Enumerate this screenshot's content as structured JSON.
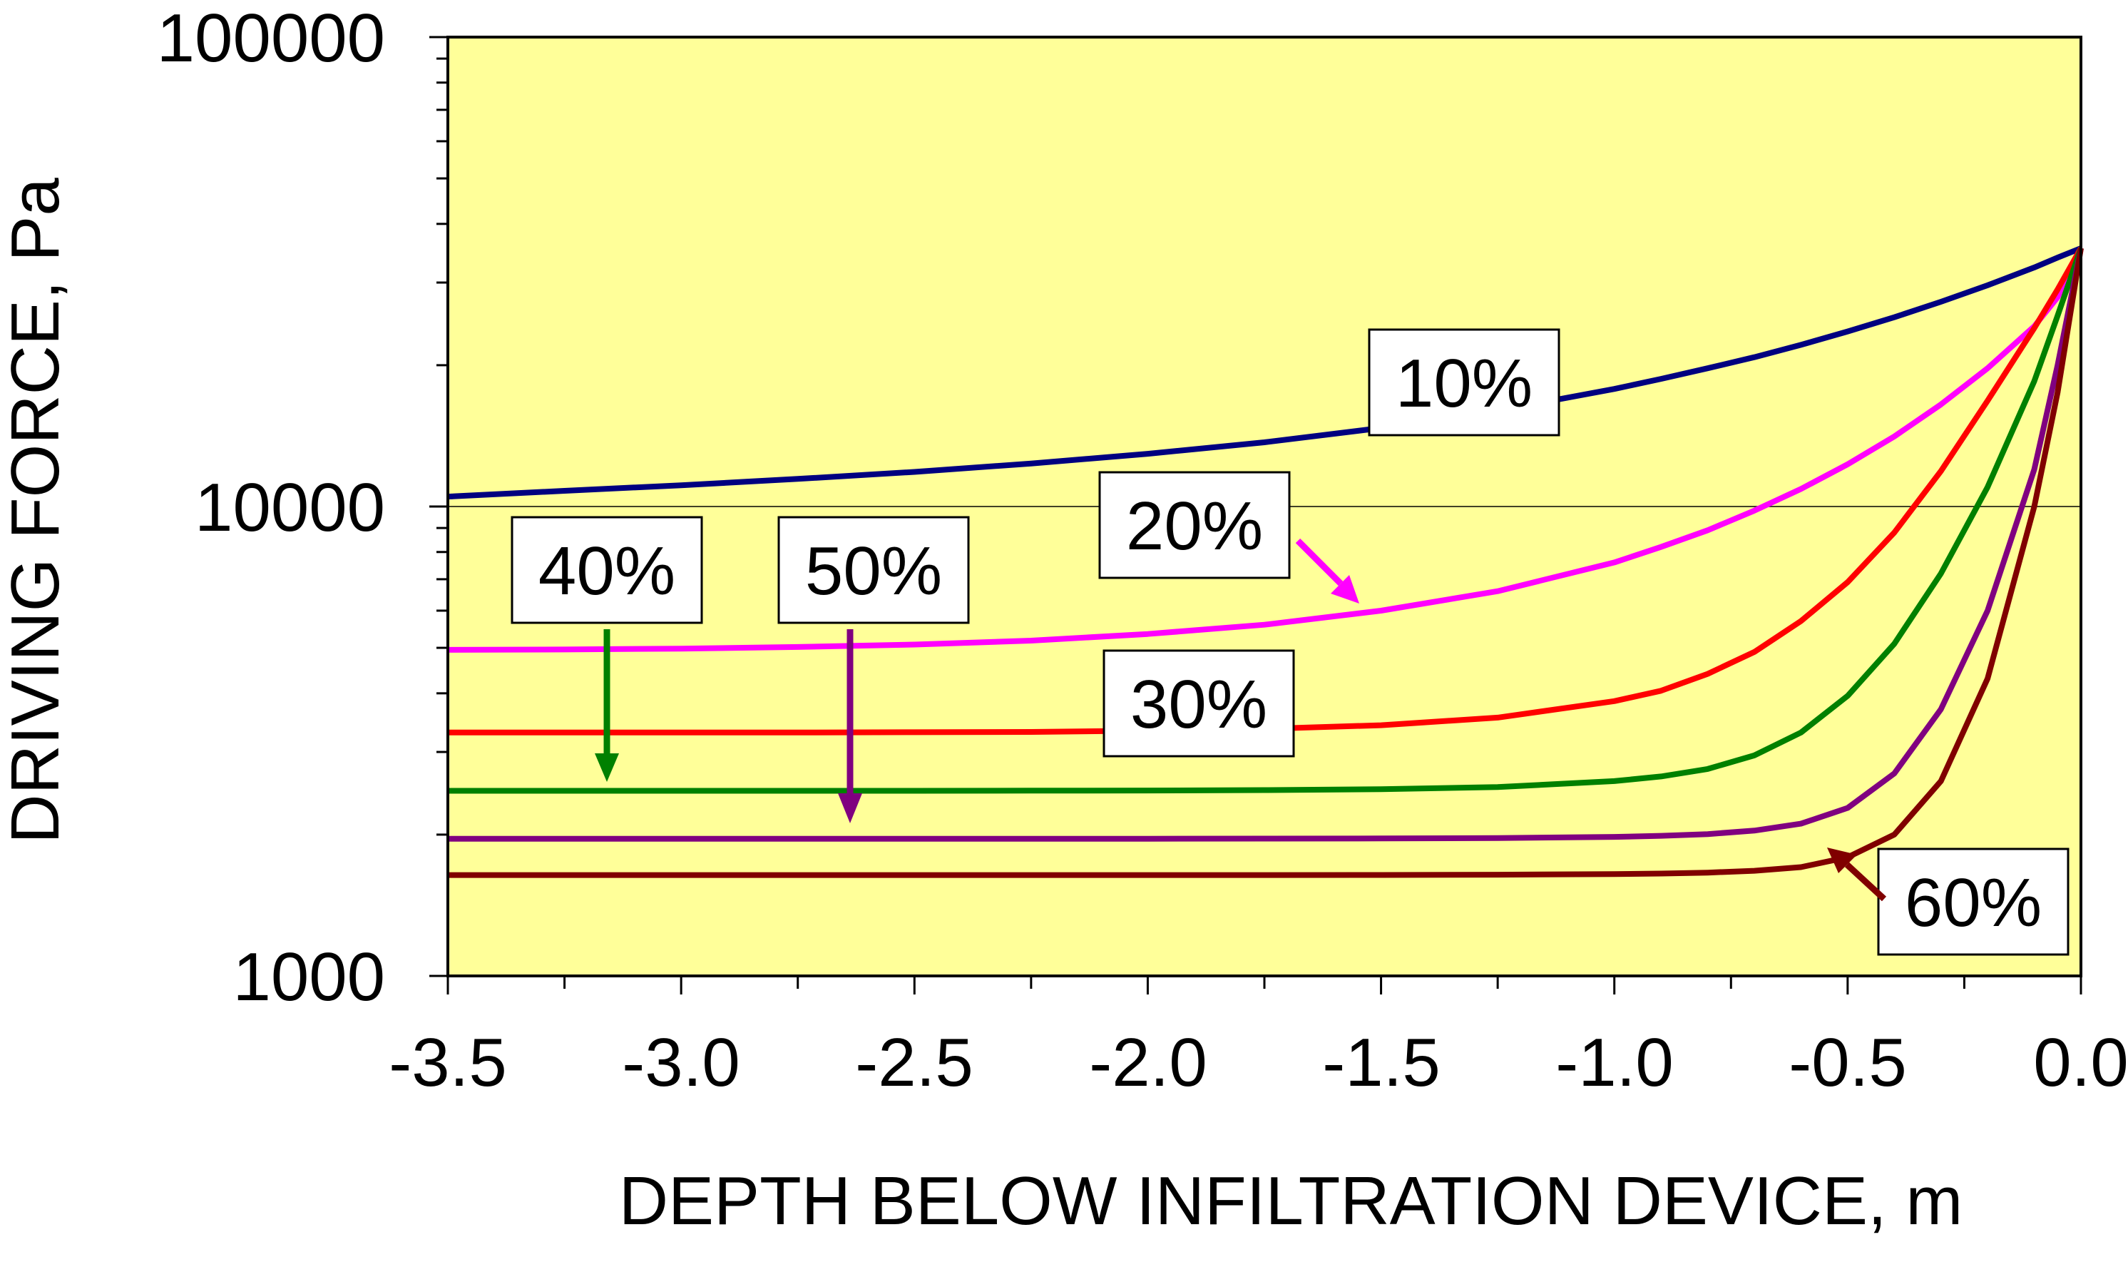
{
  "chart_data": {
    "type": "line",
    "title": "",
    "xlabel": "DEPTH BELOW INFILTRATION DEVICE, m",
    "ylabel": "DRIVING FORCE, Pa",
    "xlim": [
      -3.5,
      0.0
    ],
    "ylim": [
      1000,
      100000
    ],
    "yscale": "log",
    "x_ticks": [
      "-3.5",
      "-3.0",
      "-2.5",
      "-2.0",
      "-1.5",
      "-1.0",
      "-0.5",
      "0.0"
    ],
    "x_tick_values": [
      -3.5,
      -3.0,
      -2.5,
      -2.0,
      -1.5,
      -1.0,
      -0.5,
      0.0
    ],
    "y_ticks": [
      "1000",
      "10000",
      "100000"
    ],
    "y_tick_values": [
      1000,
      10000,
      100000
    ],
    "gridlines": "horizontal at 10000",
    "plot_background": "#ffff99",
    "x": [
      -3.5,
      -3.25,
      -3.0,
      -2.75,
      -2.5,
      -2.25,
      -2.0,
      -1.75,
      -1.5,
      -1.25,
      -1.0,
      -0.9,
      -0.8,
      -0.7,
      -0.6,
      -0.5,
      -0.4,
      -0.3,
      -0.2,
      -0.1,
      -0.05,
      0.0
    ],
    "series": [
      {
        "name": "10%",
        "label": "10%",
        "color": "#000080",
        "values": [
          10500,
          10800,
          11100,
          11450,
          11850,
          12350,
          12950,
          13700,
          14700,
          16000,
          17800,
          18700,
          19700,
          20800,
          22100,
          23600,
          25300,
          27300,
          29600,
          32300,
          33900,
          35500
        ]
      },
      {
        "name": "20%",
        "label": "20%",
        "color": "#ff00ff",
        "values": [
          4950,
          4960,
          4980,
          5020,
          5080,
          5180,
          5350,
          5600,
          6000,
          6600,
          7600,
          8200,
          8900,
          9800,
          10900,
          12300,
          14100,
          16500,
          19700,
          24200,
          27900,
          35500
        ]
      },
      {
        "name": "30%",
        "label": "30%",
        "color": "#ff0000",
        "values": [
          3300,
          3300,
          3300,
          3300,
          3305,
          3310,
          3330,
          3360,
          3420,
          3550,
          3850,
          4050,
          4400,
          4900,
          5700,
          6900,
          8800,
          11900,
          16800,
          24000,
          29000,
          35500
        ]
      },
      {
        "name": "40%",
        "label": "40%",
        "color": "#008000",
        "values": [
          2480,
          2480,
          2480,
          2480,
          2480,
          2481,
          2483,
          2488,
          2500,
          2525,
          2600,
          2660,
          2760,
          2950,
          3300,
          3950,
          5100,
          7200,
          11000,
          18500,
          25500,
          35500
        ]
      },
      {
        "name": "50%",
        "label": "50%",
        "color": "#800080",
        "values": [
          1960,
          1960,
          1960,
          1960,
          1960,
          1960,
          1960,
          1961,
          1963,
          1967,
          1978,
          1988,
          2005,
          2040,
          2110,
          2280,
          2700,
          3700,
          6000,
          12000,
          20000,
          35500
        ]
      },
      {
        "name": "60%",
        "label": "60%",
        "color": "#800000",
        "values": [
          1640,
          1640,
          1640,
          1640,
          1640,
          1640,
          1640,
          1640,
          1641,
          1643,
          1648,
          1652,
          1660,
          1675,
          1705,
          1790,
          2000,
          2600,
          4300,
          10000,
          17500,
          35500
        ]
      }
    ],
    "annotations": [
      {
        "text": "10%",
        "series": "10%",
        "arrow": false
      },
      {
        "text": "20%",
        "series": "20%",
        "arrow": true,
        "arrow_to_x": -1.55
      },
      {
        "text": "30%",
        "series": "30%",
        "arrow": false
      },
      {
        "text": "40%",
        "series": "40%",
        "arrow": true,
        "arrow_to_x": -3.18
      },
      {
        "text": "50%",
        "series": "50%",
        "arrow": true,
        "arrow_to_x": -2.66
      },
      {
        "text": "60%",
        "series": "60%",
        "arrow": true,
        "arrow_to_x": -0.53
      }
    ]
  }
}
